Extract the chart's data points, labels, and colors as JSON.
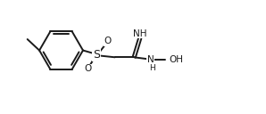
{
  "bg_color": "#ffffff",
  "line_color": "#1a1a1a",
  "line_width": 1.4,
  "font_size": 7.5,
  "fig_width": 2.98,
  "fig_height": 1.28,
  "dpi": 100,
  "xlim": [
    0,
    10
  ],
  "ylim": [
    0,
    4.3
  ]
}
